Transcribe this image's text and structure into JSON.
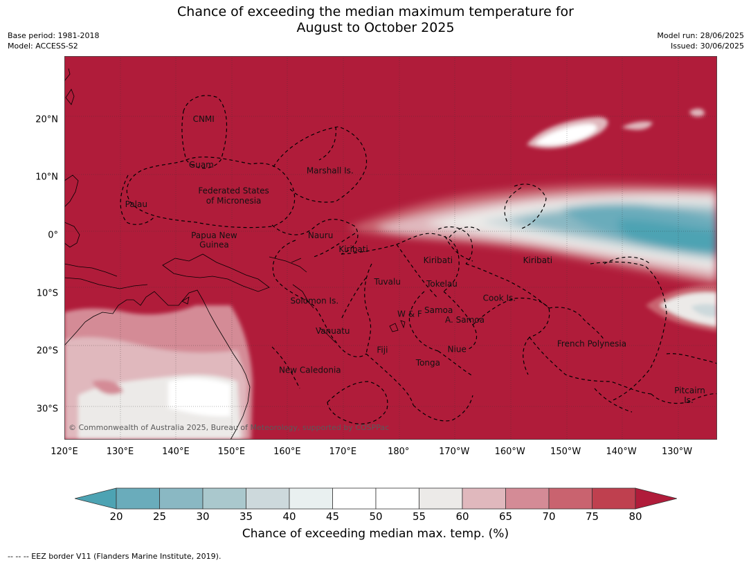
{
  "header": {
    "title_line1": "Chance of exceeding the median maximum temperature for",
    "title_line2": "August to October 2025",
    "base_period": "Base period: 1981-2018",
    "model": "Model: ACCESS-S2",
    "model_run": "Model run: 28/06/2025",
    "issued": "Issued: 30/06/2025"
  },
  "axes": {
    "lat_labels": [
      {
        "text": "20°N",
        "lat": 20
      },
      {
        "text": "10°N",
        "lat": 10
      },
      {
        "text": "0°",
        "lat": 0
      },
      {
        "text": "10°S",
        "lat": -10
      },
      {
        "text": "20°S",
        "lat": -20
      },
      {
        "text": "30°S",
        "lat": -30
      }
    ],
    "lon_labels": [
      {
        "text": "120°E",
        "lon": 120
      },
      {
        "text": "130°E",
        "lon": 130
      },
      {
        "text": "140°E",
        "lon": 140
      },
      {
        "text": "150°E",
        "lon": 150
      },
      {
        "text": "160°E",
        "lon": 160
      },
      {
        "text": "170°E",
        "lon": 170
      },
      {
        "text": "180°",
        "lon": 180
      },
      {
        "text": "170°W",
        "lon": 190
      },
      {
        "text": "160°W",
        "lon": 200
      },
      {
        "text": "150°W",
        "lon": 210
      },
      {
        "text": "140°W",
        "lon": 220
      },
      {
        "text": "130°W",
        "lon": 230
      }
    ]
  },
  "regions": [
    {
      "name": "CNMI",
      "lon": 145.0,
      "lat": 20.1
    },
    {
      "name": "Guam",
      "lon": 144.6,
      "lat": 12.2
    },
    {
      "name": "Marshall Is.",
      "lon": 167.7,
      "lat": 11.2
    },
    {
      "name": "Palau",
      "lon": 132.9,
      "lat": 5.4
    },
    {
      "name": "Federated States",
      "lon": 150.4,
      "lat": 7.7
    },
    {
      "name": "of Micronesia",
      "lon": 150.4,
      "lat": 6.0
    },
    {
      "name": "Papua New",
      "lon": 146.9,
      "lat": 0.0
    },
    {
      "name": "Guinea",
      "lon": 146.9,
      "lat": -1.6
    },
    {
      "name": "Nauru",
      "lon": 166.0,
      "lat": 0.0
    },
    {
      "name": "Kiribati",
      "lon": 171.9,
      "lat": -2.4
    },
    {
      "name": "Kiribati",
      "lon": 187.1,
      "lat": -4.3
    },
    {
      "name": "Kiribati",
      "lon": 205.0,
      "lat": -4.3
    },
    {
      "name": "Tuvalu",
      "lon": 178.0,
      "lat": -8.0
    },
    {
      "name": "Tokelau",
      "lon": 187.8,
      "lat": -8.4
    },
    {
      "name": "Solomon Is.",
      "lon": 164.9,
      "lat": -11.3
    },
    {
      "name": "Cook Is.",
      "lon": 198.1,
      "lat": -10.8
    },
    {
      "name": "Samoa",
      "lon": 187.2,
      "lat": -12.9
    },
    {
      "name": "W & F",
      "lon": 182.0,
      "lat": -13.6
    },
    {
      "name": "A. Samoa",
      "lon": 191.9,
      "lat": -14.6
    },
    {
      "name": "Vanuatu",
      "lon": 168.2,
      "lat": -16.5
    },
    {
      "name": "Fiji",
      "lon": 177.1,
      "lat": -19.8
    },
    {
      "name": "Niue",
      "lon": 190.5,
      "lat": -19.7
    },
    {
      "name": "French Polynesia",
      "lon": 214.7,
      "lat": -18.7
    },
    {
      "name": "Tonga",
      "lon": 185.3,
      "lat": -22.0
    },
    {
      "name": "New Caledonia",
      "lon": 164.1,
      "lat": -23.3
    },
    {
      "name": "Pitcairn",
      "lon": 232.3,
      "lat": -26.8
    },
    {
      "name": "Is.",
      "lon": 232.1,
      "lat": -28.5
    }
  ],
  "copyright": "© Commonwealth of Australia 2025, Bureau of Meteorology, supported by COSPPac",
  "colorbar": {
    "ticks": [
      "20",
      "25",
      "30",
      "35",
      "40",
      "45",
      "50",
      "55",
      "60",
      "65",
      "70",
      "75",
      "80"
    ],
    "colors": [
      "#4da3b3",
      "#6aacbb",
      "#8ab8c3",
      "#aac8cd",
      "#cdd9dc",
      "#e9f0f0",
      "#ffffff",
      "#ffffff",
      "#eceae8",
      "#e0b8bd",
      "#d48b96",
      "#c9636f",
      "#bf404f",
      "#b01c3a"
    ],
    "title": "Chance of exceeding median max. temp. (%)"
  },
  "colors": {
    "high": "#b01c3a",
    "land_outline": "#000000"
  },
  "footnote": "--  --  -- EEZ border V11 (Flanders Marine Institute, 2019)."
}
